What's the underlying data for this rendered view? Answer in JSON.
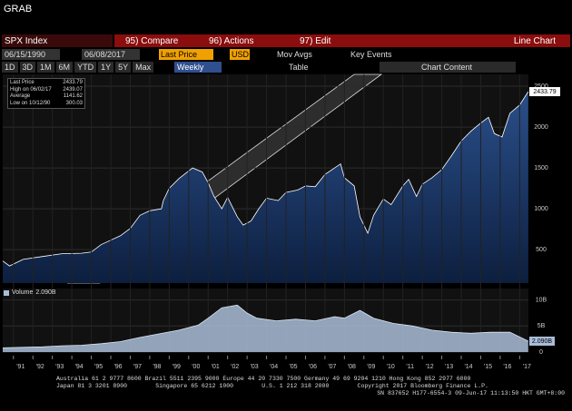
{
  "app": "GRAB",
  "toolbar": {
    "security": "SPX Index",
    "compare": "95) Compare",
    "actions": "96) Actions",
    "edit": "97) Edit",
    "chart_type": "Line Chart",
    "start_date": "06/15/1990",
    "end_date": "06/08/2017",
    "field": "Last Price",
    "currency": "USD",
    "mov_avgs": "Mov Avgs",
    "key_events": "Key Events",
    "periods": [
      "1D",
      "3D",
      "1M",
      "6M",
      "YTD",
      "1Y",
      "5Y",
      "Max"
    ],
    "frequency": "Weekly",
    "table": "Table",
    "chart_content": "Chart Content"
  },
  "chart_data": [
    {
      "type": "line",
      "x": [
        1990.45,
        1990.8,
        1991.5,
        1992.5,
        1993.5,
        1994.5,
        1995.0,
        1995.5,
        1996.0,
        1996.5,
        1997.0,
        1997.5,
        1998.0,
        1998.6,
        1998.7,
        1999.0,
        1999.5,
        2000.2,
        2000.7,
        2001.0,
        2001.3,
        2001.7,
        2002.0,
        2002.5,
        2002.8,
        2003.2,
        2003.6,
        2004.0,
        2004.6,
        2005.0,
        2005.6,
        2006.0,
        2006.5,
        2007.0,
        2007.5,
        2007.8,
        2008.0,
        2008.5,
        2008.8,
        2009.2,
        2009.5,
        2010.0,
        2010.4,
        2011.0,
        2011.3,
        2011.7,
        2012.0,
        2012.5,
        2013.0,
        2013.5,
        2014.0,
        2014.5,
        2015.0,
        2015.4,
        2015.7,
        2016.1,
        2016.5,
        2017.0,
        2017.44
      ],
      "series": [
        {
          "name": "Last Price",
          "color": "#ffffff",
          "fill": "#17335f",
          "values": [
            360,
            300,
            380,
            415,
            450,
            455,
            470,
            560,
            615,
            670,
            760,
            920,
            975,
            1000,
            1100,
            1250,
            1370,
            1500,
            1450,
            1320,
            1150,
            1000,
            1140,
            900,
            800,
            850,
            1000,
            1130,
            1100,
            1200,
            1230,
            1280,
            1270,
            1420,
            1500,
            1550,
            1380,
            1280,
            900,
            700,
            920,
            1120,
            1050,
            1280,
            1360,
            1150,
            1300,
            1380,
            1480,
            1650,
            1830,
            1950,
            2050,
            2120,
            1920,
            1880,
            2170,
            2270,
            2433.79
          ]
        }
      ],
      "xlim": [
        1990.45,
        2017.45
      ],
      "ylim": [
        90,
        2645
      ],
      "yticks": [
        500,
        1000,
        1500,
        2000,
        2500
      ],
      "legend": [
        {
          "label": "Last Price",
          "value": 2433.79
        },
        {
          "label": "High on 06/02/17",
          "value": 2439.07
        },
        {
          "label": "Average",
          "value": 1141.62
        },
        {
          "label": "Low on 10/12/90",
          "value": 300.03
        }
      ]
    },
    {
      "type": "area",
      "x": [
        1990.45,
        1991.5,
        1992.5,
        1993.5,
        1994.5,
        1995.5,
        1996.5,
        1997.5,
        1998.5,
        1999.5,
        2000.5,
        2001.0,
        2001.7,
        2002.5,
        2003.0,
        2003.5,
        2004.5,
        2005.5,
        2006.5,
        2007.5,
        2008.0,
        2008.8,
        2009.5,
        2010.5,
        2011.5,
        2012.5,
        2013.5,
        2014.5,
        2015.5,
        2016.5,
        2017.44
      ],
      "series": [
        {
          "name": "Volume",
          "color": "#a9bdd8",
          "values": [
            0.8,
            0.9,
            1.0,
            1.2,
            1.3,
            1.6,
            2.0,
            2.8,
            3.5,
            4.2,
            5.2,
            6.5,
            8.5,
            9.0,
            7.5,
            6.5,
            6.0,
            6.3,
            6.0,
            6.8,
            6.5,
            8.0,
            6.5,
            5.5,
            5.0,
            4.2,
            3.8,
            3.6,
            3.8,
            3.8,
            2.09
          ],
          "value_labels": [
            null,
            null,
            null,
            null,
            null,
            null,
            null,
            null,
            null,
            null,
            null,
            null,
            null,
            null,
            null,
            null,
            null,
            null,
            null,
            null,
            null,
            null,
            null,
            null,
            null,
            null,
            null,
            null,
            null,
            null,
            "2.090B"
          ]
        }
      ],
      "xlim": [
        1990.45,
        2017.45
      ],
      "ylim": [
        0,
        11.5
      ],
      "yticks": [
        {
          "value": 10,
          "label": "10B"
        },
        {
          "value": 5,
          "label": "5B"
        },
        0
      ],
      "xticks": [
        {
          "value": 1991,
          "label": "'91"
        },
        {
          "value": 1992,
          "label": "'92"
        },
        {
          "value": 1993,
          "label": "'93"
        },
        {
          "value": 1994,
          "label": "'94"
        },
        {
          "value": 1995,
          "label": "'95"
        },
        {
          "value": 1996,
          "label": "'96"
        },
        {
          "value": 1997,
          "label": "'97"
        },
        {
          "value": 1998,
          "label": "'98"
        },
        {
          "value": 1999,
          "label": "'99"
        },
        {
          "value": 2000,
          "label": "'00"
        },
        {
          "value": 2001,
          "label": "'01"
        },
        {
          "value": 2002,
          "label": "'02"
        },
        {
          "value": 2003,
          "label": "'03"
        },
        {
          "value": 2004,
          "label": "'04"
        },
        {
          "value": 2005,
          "label": "'05"
        },
        {
          "value": 2006,
          "label": "'06"
        },
        {
          "value": 2007,
          "label": "'07"
        },
        {
          "value": 2008,
          "label": "'08"
        },
        {
          "value": 2009,
          "label": "'09"
        },
        {
          "value": 2010,
          "label": "'10"
        },
        {
          "value": 2011,
          "label": "'11"
        },
        {
          "value": 2012,
          "label": "'12"
        },
        {
          "value": 2013,
          "label": "'13"
        },
        {
          "value": 2014,
          "label": "'14"
        },
        {
          "value": 2015,
          "label": "'15"
        },
        {
          "value": 2016,
          "label": "'16"
        },
        {
          "value": 2017,
          "label": "'17"
        }
      ]
    }
  ],
  "footer": [
    "Australia 61 2 9777 8600 Brazil 5511 2395 9000 Europe 44 20 7330 7500 Germany 49 69 9204 1210 Hong Kong 852 2977 6000",
    "Japan 81 3 3201 8900        Singapore 65 6212 1000        U.S. 1 212 318 2000        Copyright 2017 Bloomberg Finance L.P.",
    "SN 837652 H177-6554-3 09-Jun-17 11:13:50 HKT GMT+8:00"
  ]
}
